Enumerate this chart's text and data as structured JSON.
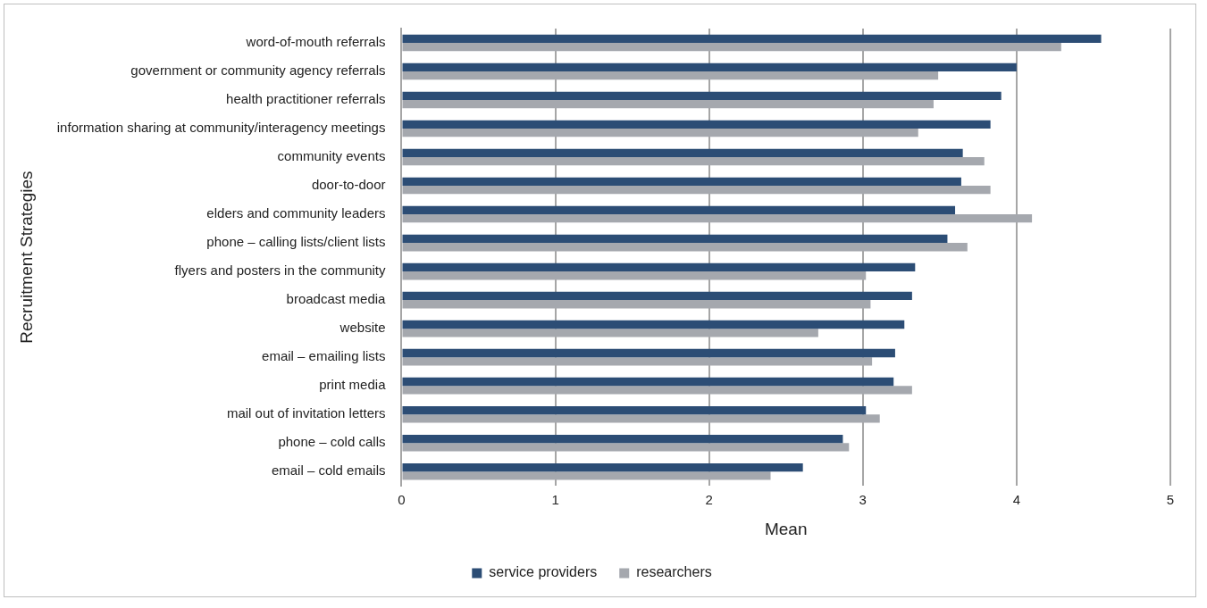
{
  "chart_data": {
    "type": "bar",
    "orientation": "horizontal",
    "xlabel": "Mean",
    "ylabel": "Recruitment Strategies",
    "categories": [
      "word-of-mouth referrals",
      "government or community agency referrals",
      "health practitioner referrals",
      "information sharing at community/interagency meetings",
      "community events",
      "door-to-door",
      "elders and community leaders",
      "phone – calling lists/client lists",
      "flyers and posters in the community",
      "broadcast media",
      "website",
      "email – emailing lists",
      "print media",
      "mail out of invitation letters",
      "phone – cold calls",
      "email – cold emails"
    ],
    "series": [
      {
        "name": "service providers",
        "color": "#2c4d75",
        "values": [
          4.55,
          4.0,
          3.9,
          3.83,
          3.65,
          3.64,
          3.6,
          3.55,
          3.34,
          3.32,
          3.27,
          3.21,
          3.2,
          3.02,
          2.87,
          2.61
        ]
      },
      {
        "name": "researchers",
        "color": "#a5a8ae",
        "values": [
          4.29,
          3.49,
          3.46,
          3.36,
          3.79,
          3.83,
          4.1,
          3.68,
          3.02,
          3.05,
          2.71,
          3.06,
          3.32,
          3.11,
          2.91,
          2.4
        ]
      }
    ],
    "xlim": [
      0,
      5
    ],
    "xticks": [
      0,
      1,
      2,
      3,
      4,
      5
    ],
    "grid": "x",
    "legend": "bottom"
  }
}
